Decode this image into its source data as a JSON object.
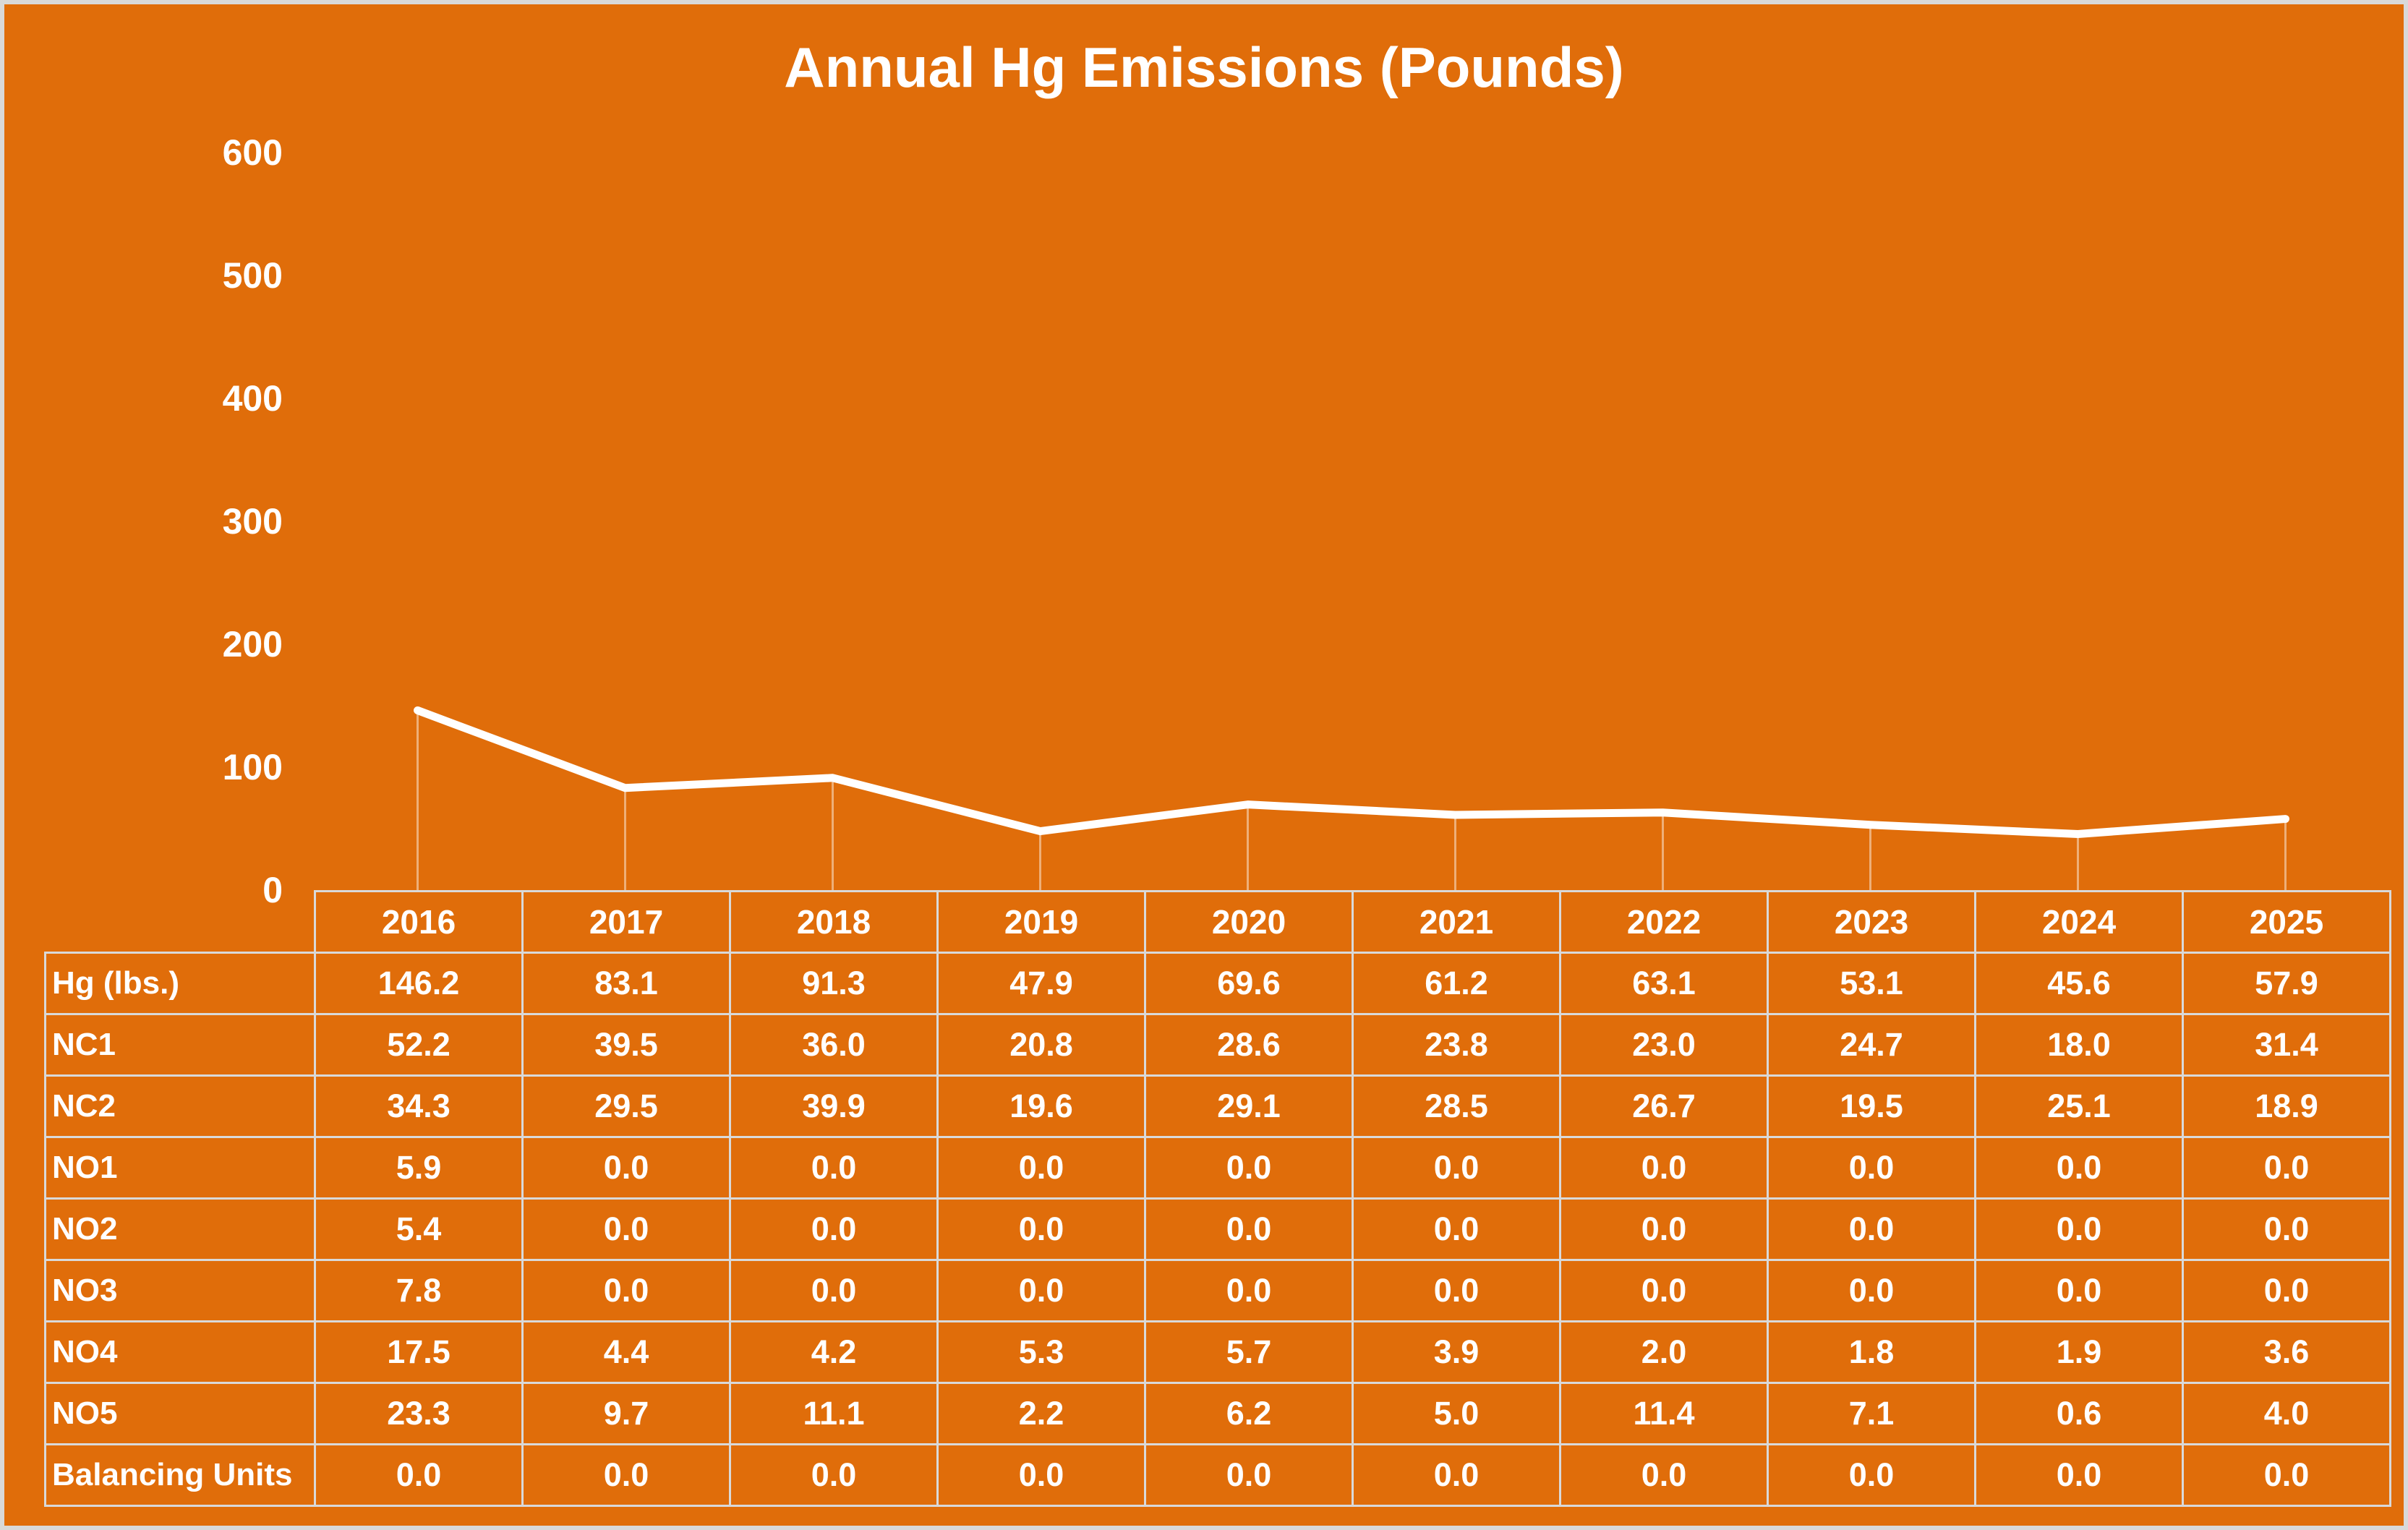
{
  "title": "Annual Hg Emissions (Pounds)",
  "colors": {
    "background": "#E06D0A",
    "text": "#FFFFFF",
    "table_border": "#D9D9D9",
    "line": "#FFFFFF",
    "drop_line": "rgba(255,255,255,0.45)"
  },
  "chart_data": {
    "type": "line",
    "title": "Annual Hg Emissions (Pounds)",
    "categories": [
      "2016",
      "2017",
      "2018",
      "2019",
      "2020",
      "2021",
      "2022",
      "2023",
      "2024",
      "2025"
    ],
    "series": [
      {
        "name": "Hg (lbs.)",
        "values": [
          146.2,
          83.1,
          91.3,
          47.9,
          69.6,
          61.2,
          63.1,
          53.1,
          45.6,
          57.9
        ]
      }
    ],
    "xlabel": "",
    "ylabel": "",
    "ylim": [
      0,
      600
    ],
    "y_ticks": [
      600,
      500,
      400,
      300,
      200,
      100,
      0
    ],
    "grid": false,
    "legend_position": "none",
    "drop_lines": true
  },
  "table": {
    "header_row": [
      "",
      "2016",
      "2017",
      "2018",
      "2019",
      "2020",
      "2021",
      "2022",
      "2023",
      "2024",
      "2025"
    ],
    "rows": [
      {
        "label": "Hg (lbs.)",
        "values": [
          "146.2",
          "83.1",
          "91.3",
          "47.9",
          "69.6",
          "61.2",
          "63.1",
          "53.1",
          "45.6",
          "57.9"
        ]
      },
      {
        "label": "NC1",
        "values": [
          "52.2",
          "39.5",
          "36.0",
          "20.8",
          "28.6",
          "23.8",
          "23.0",
          "24.7",
          "18.0",
          "31.4"
        ]
      },
      {
        "label": "NC2",
        "values": [
          "34.3",
          "29.5",
          "39.9",
          "19.6",
          "29.1",
          "28.5",
          "26.7",
          "19.5",
          "25.1",
          "18.9"
        ]
      },
      {
        "label": "NO1",
        "values": [
          "5.9",
          "0.0",
          "0.0",
          "0.0",
          "0.0",
          "0.0",
          "0.0",
          "0.0",
          "0.0",
          "0.0"
        ]
      },
      {
        "label": "NO2",
        "values": [
          "5.4",
          "0.0",
          "0.0",
          "0.0",
          "0.0",
          "0.0",
          "0.0",
          "0.0",
          "0.0",
          "0.0"
        ]
      },
      {
        "label": "NO3",
        "values": [
          "7.8",
          "0.0",
          "0.0",
          "0.0",
          "0.0",
          "0.0",
          "0.0",
          "0.0",
          "0.0",
          "0.0"
        ]
      },
      {
        "label": "NO4",
        "values": [
          "17.5",
          "4.4",
          "4.2",
          "5.3",
          "5.7",
          "3.9",
          "2.0",
          "1.8",
          "1.9",
          "3.6"
        ]
      },
      {
        "label": "NO5",
        "values": [
          "23.3",
          "9.7",
          "11.1",
          "2.2",
          "6.2",
          "5.0",
          "11.4",
          "7.1",
          "0.6",
          "4.0"
        ]
      },
      {
        "label": "Balancing Units",
        "values": [
          "0.0",
          "0.0",
          "0.0",
          "0.0",
          "0.0",
          "0.0",
          "0.0",
          "0.0",
          "0.0",
          "0.0"
        ]
      }
    ]
  }
}
